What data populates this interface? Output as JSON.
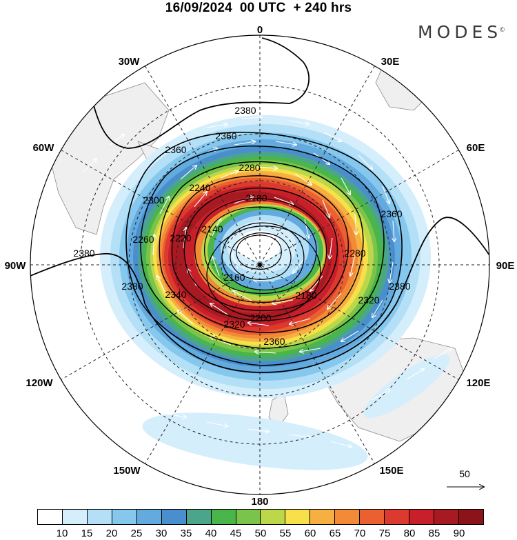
{
  "title": "16/09/2024  00 UTC  + 240 hrs",
  "logo": {
    "text": "MODES",
    "mark": "©"
  },
  "longitude_labels": [
    "0",
    "30E",
    "60E",
    "90E",
    "120E",
    "150E",
    "180",
    "150W",
    "120W",
    "90W",
    "60W",
    "30W"
  ],
  "contour_labels": [
    "2380",
    "2360",
    "2340",
    "2320",
    "2300",
    "2280",
    "2260",
    "2240",
    "2220",
    "2200",
    "2180",
    "2160",
    "2140"
  ],
  "reference_vector": {
    "label": "50"
  },
  "colorbar": {
    "ticks": [
      "10",
      "15",
      "20",
      "25",
      "30",
      "35",
      "40",
      "45",
      "50",
      "55",
      "60",
      "65",
      "70",
      "75",
      "80",
      "85",
      "90"
    ],
    "colors": [
      "#ffffff",
      "#d4eefc",
      "#b3e0f7",
      "#86c7ee",
      "#63aade",
      "#4a8fcd",
      "#4aa58a",
      "#4ab54a",
      "#7bc44b",
      "#bcd84a",
      "#f7e04a",
      "#f6b042",
      "#f28a37",
      "#ea6030",
      "#dc3a2e",
      "#c7202a",
      "#a81a22",
      "#8c1418"
    ]
  }
}
